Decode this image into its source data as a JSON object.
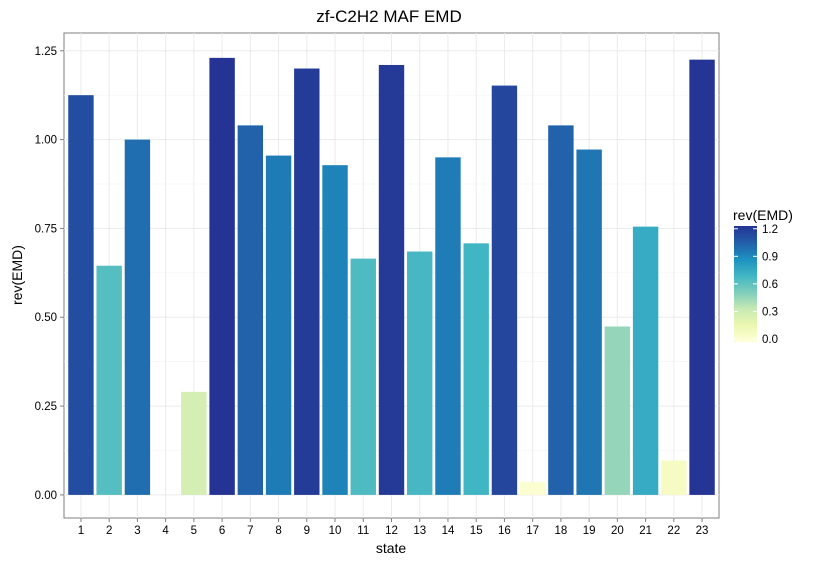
{
  "chart_data": {
    "type": "bar",
    "title": "zf-C2H2 MAF EMD",
    "xlabel": "state",
    "ylabel": "rev(EMD)",
    "categories": [
      "1",
      "2",
      "3",
      "4",
      "5",
      "6",
      "7",
      "8",
      "9",
      "10",
      "11",
      "12",
      "13",
      "14",
      "15",
      "16",
      "17",
      "18",
      "19",
      "20",
      "21",
      "22",
      "23"
    ],
    "values": [
      1.125,
      0.645,
      1.0,
      0.0,
      0.29,
      1.23,
      1.04,
      0.955,
      1.2,
      0.928,
      0.665,
      1.21,
      0.685,
      0.95,
      0.708,
      1.152,
      0.036,
      1.04,
      0.972,
      0.474,
      0.755,
      0.097,
      1.225
    ],
    "ylim": [
      -0.065,
      1.3
    ],
    "yticks": [
      "0.00",
      "0.25",
      "0.50",
      "0.75",
      "1.00",
      "1.25"
    ],
    "grid": true,
    "legend": {
      "title": "rev(EMD)",
      "position": "right",
      "ticks": [
        "0.0",
        "0.3",
        "0.6",
        "0.9",
        "1.2"
      ],
      "range": [
        0,
        1.23
      ],
      "colors": [
        "#ffffd9",
        "#edf8b1",
        "#c7e9b4",
        "#7fcdbb",
        "#41b6c4",
        "#1d91c0",
        "#225ea8",
        "#253494"
      ]
    }
  }
}
